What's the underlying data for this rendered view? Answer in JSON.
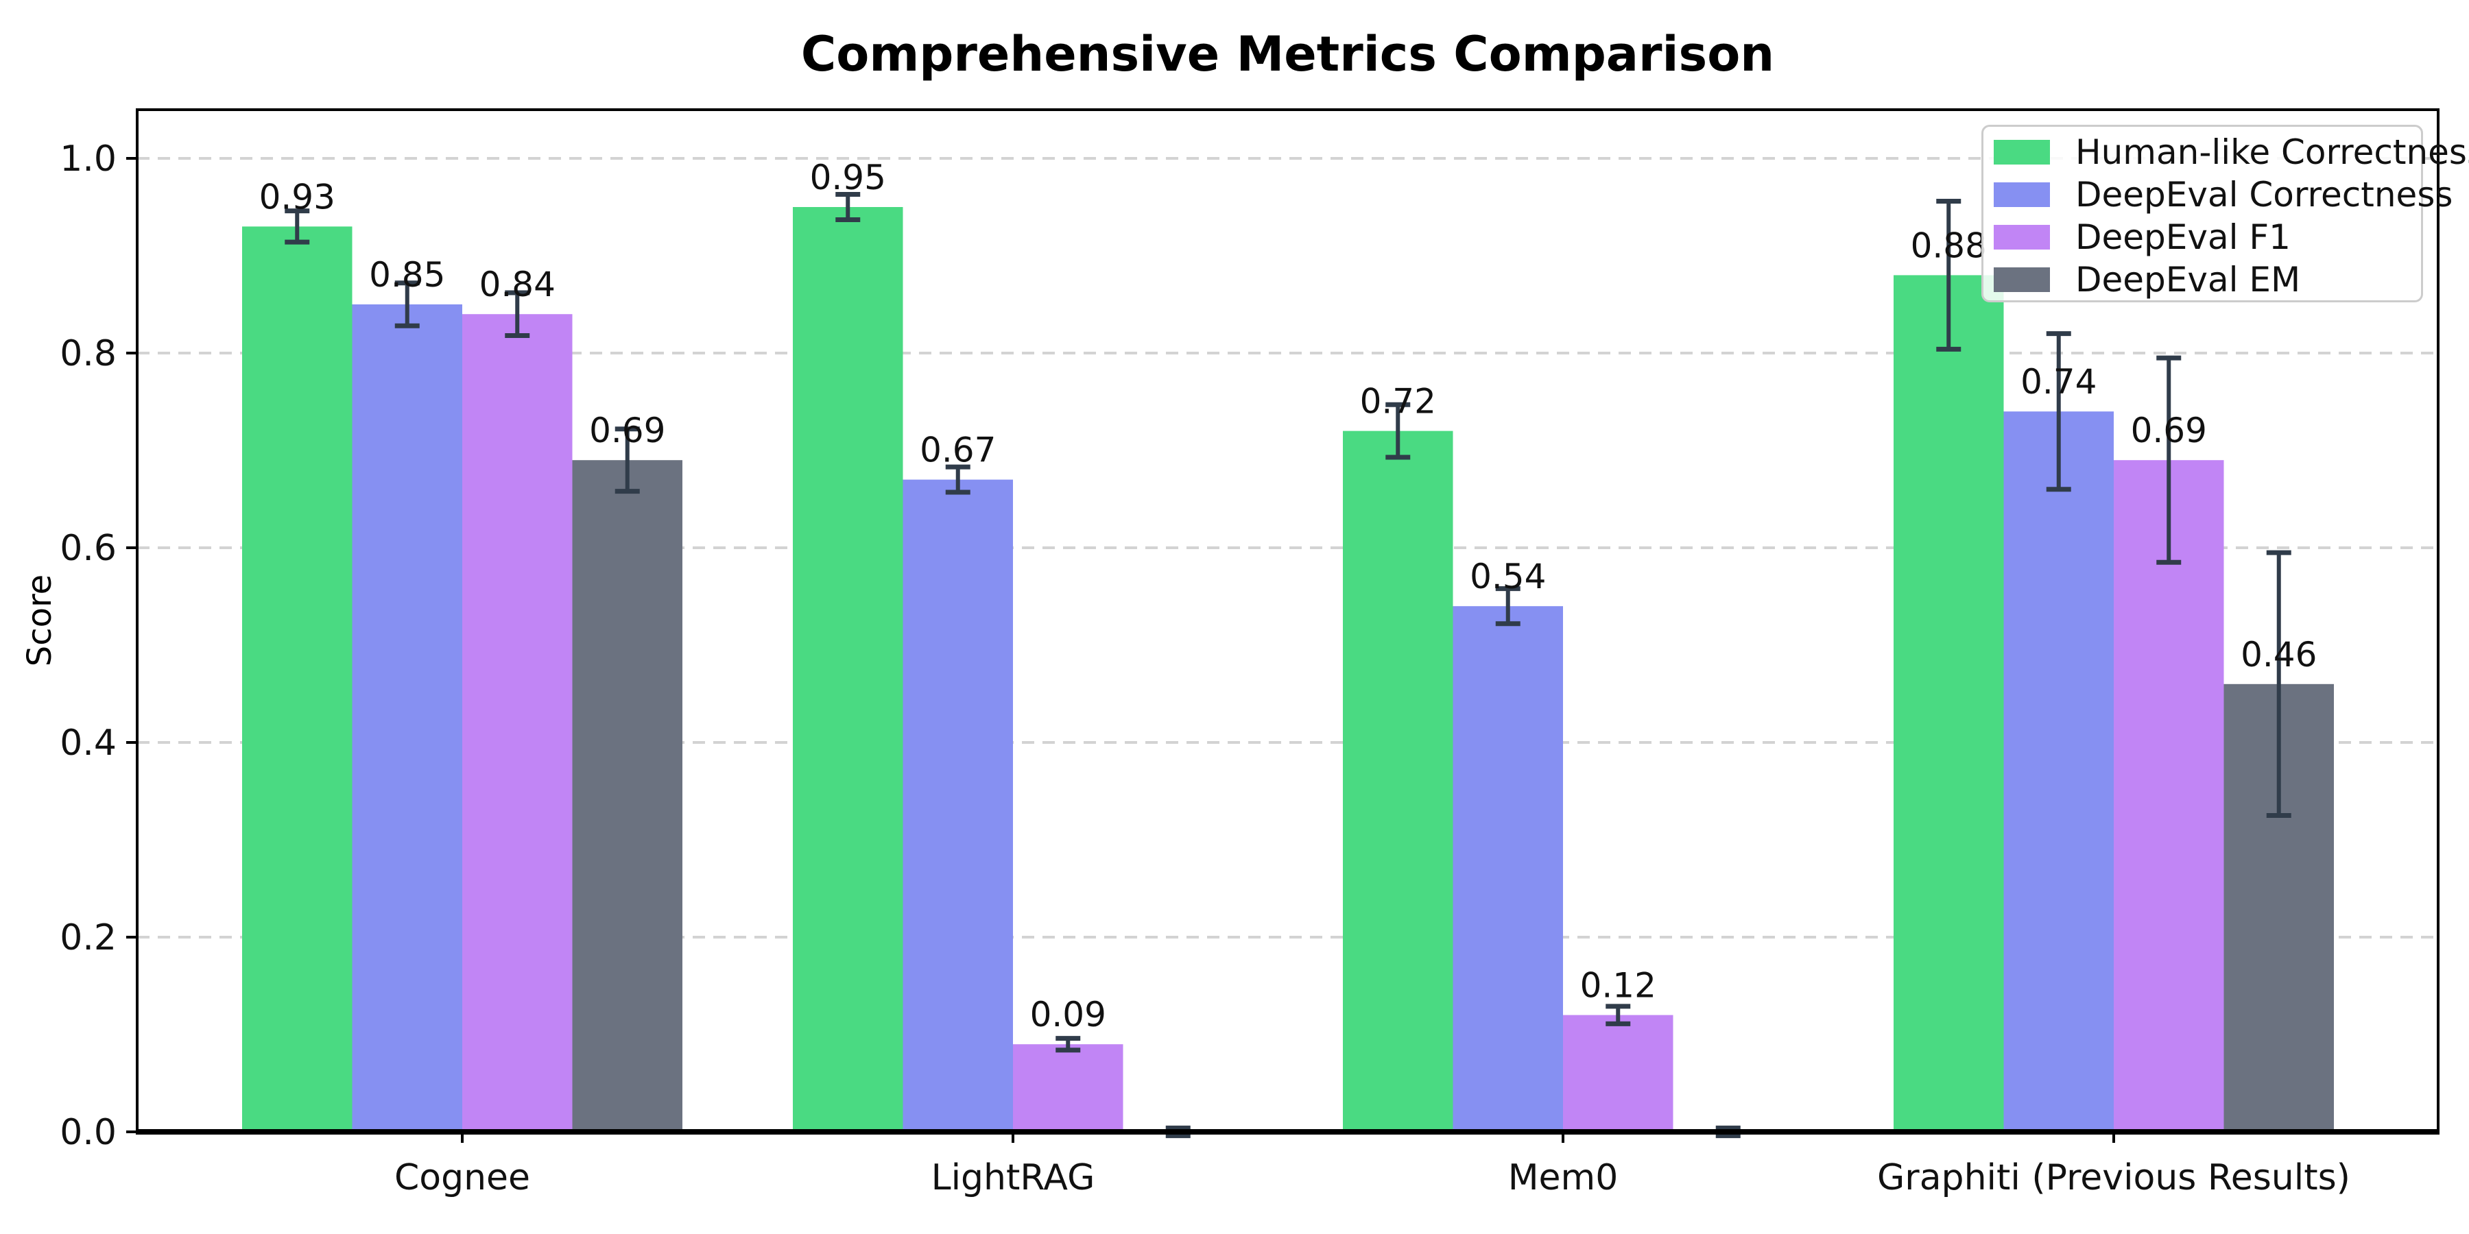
{
  "title": "Comprehensive Metrics Comparison",
  "chart_data": {
    "type": "bar",
    "title": "Comprehensive Metrics Comparison",
    "xlabel": "",
    "ylabel": "Score",
    "ylim": [
      0,
      1.05
    ],
    "grid": "horizontal dashed",
    "legend_position": "upper right",
    "background_color": "#ffffff",
    "axis_color": "#000000",
    "grid_color": "#d3d3d3",
    "error_bar_color": "#303c4a",
    "ytick_labels": [
      "0.0",
      "0.2",
      "0.4",
      "0.6",
      "0.8",
      "1.0"
    ],
    "categories": [
      "Cognee",
      "LightRAG",
      "Mem0",
      "Graphiti (Previous Results)"
    ],
    "series": [
      {
        "name": "Human-like Correctness",
        "color": "#4ada82",
        "values": [
          0.93,
          0.95,
          0.72,
          0.88
        ],
        "errors": [
          0.016,
          0.013,
          0.027,
          0.076
        ],
        "labels": [
          "0.93",
          "0.95",
          "0.72",
          "0.88"
        ]
      },
      {
        "name": "DeepEval Correctness",
        "color": "#8690f2",
        "values": [
          0.85,
          0.67,
          0.54,
          0.74
        ],
        "errors": [
          0.022,
          0.013,
          0.018,
          0.08
        ],
        "labels": [
          "0.85",
          "0.67",
          "0.54",
          "0.74"
        ]
      },
      {
        "name": "DeepEval F1",
        "color": "#c185f5",
        "values": [
          0.84,
          0.09,
          0.12,
          0.69
        ],
        "errors": [
          0.022,
          0.006,
          0.009,
          0.105
        ],
        "labels": [
          "0.84",
          "0.09",
          "0.12",
          "0.69"
        ]
      },
      {
        "name": "DeepEval EM",
        "color": "#6b7280",
        "values": [
          0.69,
          0.0,
          0.0,
          0.46
        ],
        "errors": [
          0.032,
          0.004,
          0.004,
          0.135
        ],
        "labels": [
          "0.69",
          "",
          "",
          "0.46"
        ]
      }
    ]
  }
}
